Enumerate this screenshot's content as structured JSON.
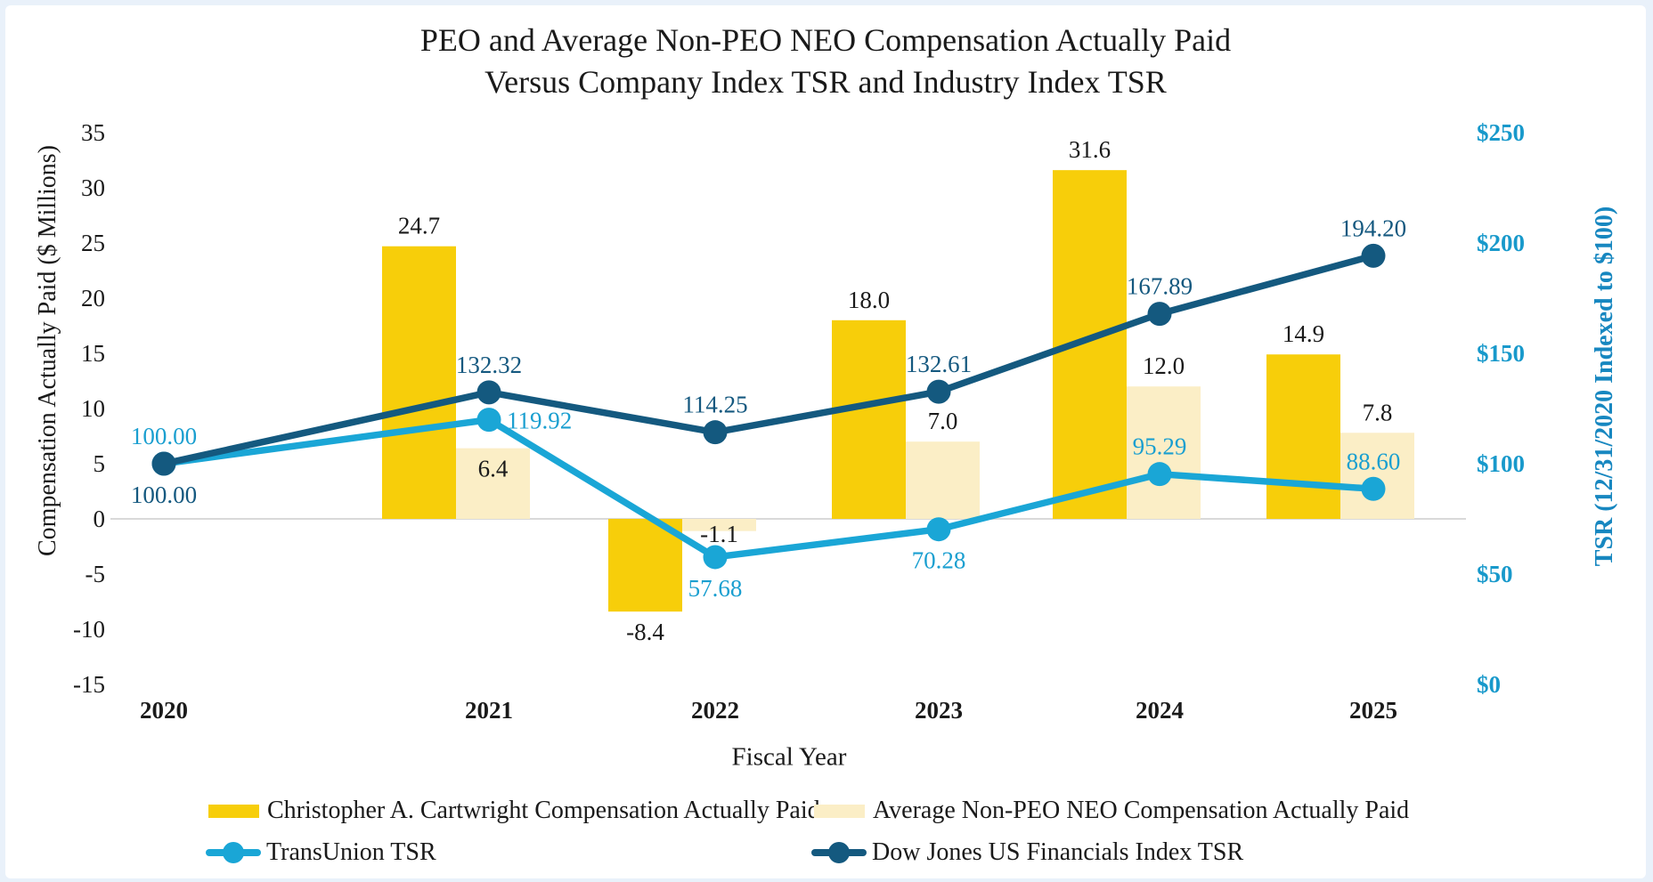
{
  "title": {
    "line1": "PEO and Average Non-PEO NEO Compensation Actually Paid",
    "line2": "Versus Company Index TSR and Industry Index TSR"
  },
  "chart_data": {
    "type": "combo-bar-line",
    "categories": [
      "2020",
      "2021",
      "2022",
      "2023",
      "2024",
      "2025"
    ],
    "x_axis_label": "Fiscal Year",
    "grid": "zero-line-only",
    "zero_line_color": "#d9d9d9",
    "legend_position": "bottom",
    "left_axis": {
      "label": "Compensation Actually Paid ($ Millions)",
      "min": -15,
      "max": 35,
      "tick_step": 5,
      "ticks": [
        35,
        30,
        25,
        20,
        15,
        10,
        5,
        0,
        -5,
        -10,
        -15
      ],
      "tick_color": "#1a1a1a"
    },
    "right_axis": {
      "label": "TSR (12/31/2020 Indexed to $100)",
      "min": 0,
      "max": 250,
      "tick_step": 50,
      "ticks": [
        250,
        200,
        150,
        100,
        50,
        0
      ],
      "tick_prefix": "$",
      "tick_color": "#1899cb"
    },
    "series": [
      {
        "name": "Christopher A. Cartwright Compensation Actually Paid",
        "type": "bar",
        "axis": "left",
        "color": "#f7ce0a",
        "label_color": "#1a1a1a",
        "values": [
          null,
          24.7,
          -8.4,
          18.0,
          31.6,
          14.9
        ],
        "labels": [
          "",
          "24.7",
          "-8.4",
          "18.0",
          "31.6",
          "14.9"
        ],
        "label_placement": [
          null,
          "above",
          "below",
          "above",
          "above",
          "above"
        ]
      },
      {
        "name": "Average Non-PEO NEO Compensation Actually Paid",
        "type": "bar",
        "axis": "left",
        "color": "#fbeec6",
        "label_color": "#1a1a1a",
        "values": [
          null,
          6.4,
          -1.1,
          7.0,
          12.0,
          7.8
        ],
        "labels": [
          "",
          "6.4",
          "-1.1",
          "7.0",
          "12.0",
          "7.8"
        ],
        "label_placement": [
          null,
          "inside",
          "below-zero",
          "above",
          "above",
          "above"
        ]
      },
      {
        "name": "TransUnion TSR",
        "type": "line",
        "axis": "right",
        "color": "#1aa6d6",
        "label_color": "#1a9fd0",
        "values": [
          100.0,
          119.92,
          57.68,
          70.28,
          95.29,
          88.6
        ],
        "labels": [
          "100.00",
          "119.92",
          "57.68",
          "70.28",
          "95.29",
          "88.60"
        ],
        "label_placement": [
          "above",
          "right",
          "below",
          "below",
          "above",
          "above"
        ]
      },
      {
        "name": "Dow Jones US Financials Index TSR",
        "type": "line",
        "axis": "right",
        "color": "#14597f",
        "label_color": "#14587f",
        "values": [
          100.0,
          132.32,
          114.25,
          132.61,
          167.89,
          194.2
        ],
        "labels": [
          "100.00",
          "132.32",
          "114.25",
          "132.61",
          "167.89",
          "194.20"
        ],
        "label_placement": [
          "below",
          "above",
          "above",
          "above",
          "above",
          "above"
        ]
      }
    ]
  }
}
